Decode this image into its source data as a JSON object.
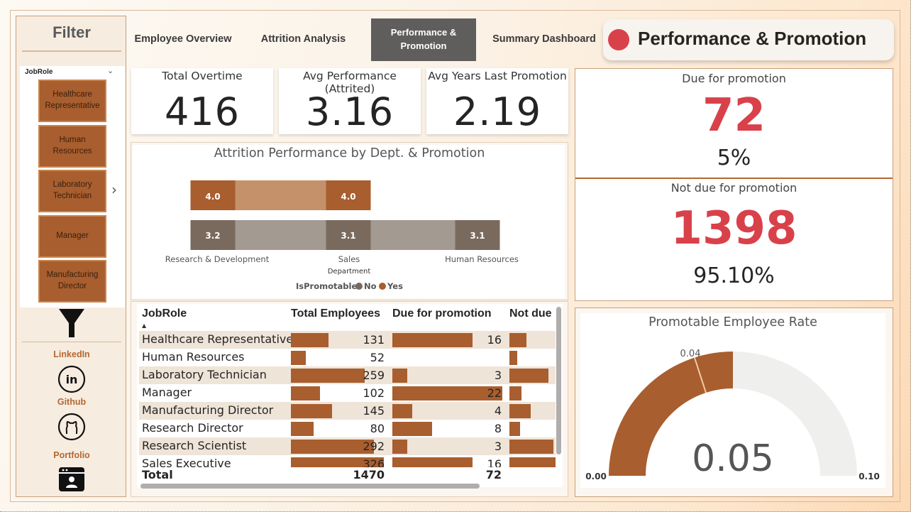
{
  "sidebar": {
    "title": "Filter",
    "slicer_header": "JobRole",
    "roles": [
      "Healthcare Representative",
      "Human Resources",
      "Laboratory Technician",
      "Manager",
      "Manufacturing Director"
    ],
    "links": [
      {
        "label": "LinkedIn",
        "icon": "linkedin-icon"
      },
      {
        "label": "Github",
        "icon": "github-icon"
      },
      {
        "label": "Portfolio",
        "icon": "portfolio-icon"
      }
    ]
  },
  "nav": {
    "employee_overview": "Employee Overview",
    "attrition_analysis": "Attrition Analysis",
    "performance_promotion": "Performance & Promotion",
    "summary_dashboard": "Summary Dashboard"
  },
  "page_title": "Performance & Promotion",
  "kpis": {
    "total_overtime": {
      "label": "Total Overtime",
      "value": "416"
    },
    "avg_performance": {
      "label": "Avg Performance (Attrited)",
      "value": "3.16"
    },
    "avg_years_promo": {
      "label": "Avg Years Last Promotion",
      "value": "2.19"
    }
  },
  "promotion": {
    "due_label": "Due for promotion",
    "due_value": "72",
    "due_pct": "5%",
    "not_due_label": "Not due for promotion",
    "not_due_value": "1398",
    "not_due_pct": "95.10%"
  },
  "chart_data": [
    {
      "type": "bar",
      "title": "Attrition Performance by Dept. & Promotion",
      "xlabel": "Department",
      "legend_title": "IsPromotable",
      "categories": [
        "Research & Development",
        "Sales",
        "Human Resources"
      ],
      "series": [
        {
          "name": "No",
          "values": [
            3.2,
            3.1,
            3.1
          ],
          "color": "#7a6a5e"
        },
        {
          "name": "Yes",
          "values": [
            4.0,
            4.0,
            null
          ],
          "color": "#a85e2e"
        }
      ]
    },
    {
      "type": "gauge",
      "title": "Promotable Employee Rate",
      "value": 0.05,
      "value_label": "0.05",
      "min": 0.0,
      "min_label": "0.00",
      "max": 0.1,
      "max_label": "0.10",
      "target": 0.04,
      "target_label": "0.04"
    }
  ],
  "table": {
    "headers": [
      "JobRole",
      "Total Employees",
      "Due for promotion",
      "Not due"
    ],
    "rows": [
      {
        "role": "Healthcare Representative",
        "total": 131,
        "due": 16,
        "not_due": 115
      },
      {
        "role": "Human Resources",
        "total": 52,
        "due": null,
        "not_due": 52
      },
      {
        "role": "Laboratory Technician",
        "total": 259,
        "due": 3,
        "not_due": 256
      },
      {
        "role": "Manager",
        "total": 102,
        "due": 22,
        "not_due": 80
      },
      {
        "role": "Manufacturing Director",
        "total": 145,
        "due": 4,
        "not_due": 141
      },
      {
        "role": "Research Director",
        "total": 80,
        "due": 8,
        "not_due": 72
      },
      {
        "role": "Research Scientist",
        "total": 292,
        "due": 3,
        "not_due": 289
      },
      {
        "role": "Sales Executive",
        "total": 326,
        "due": 16,
        "not_due": 310
      }
    ],
    "total_label": "Total",
    "total_employees": "1470",
    "total_due": "72"
  }
}
